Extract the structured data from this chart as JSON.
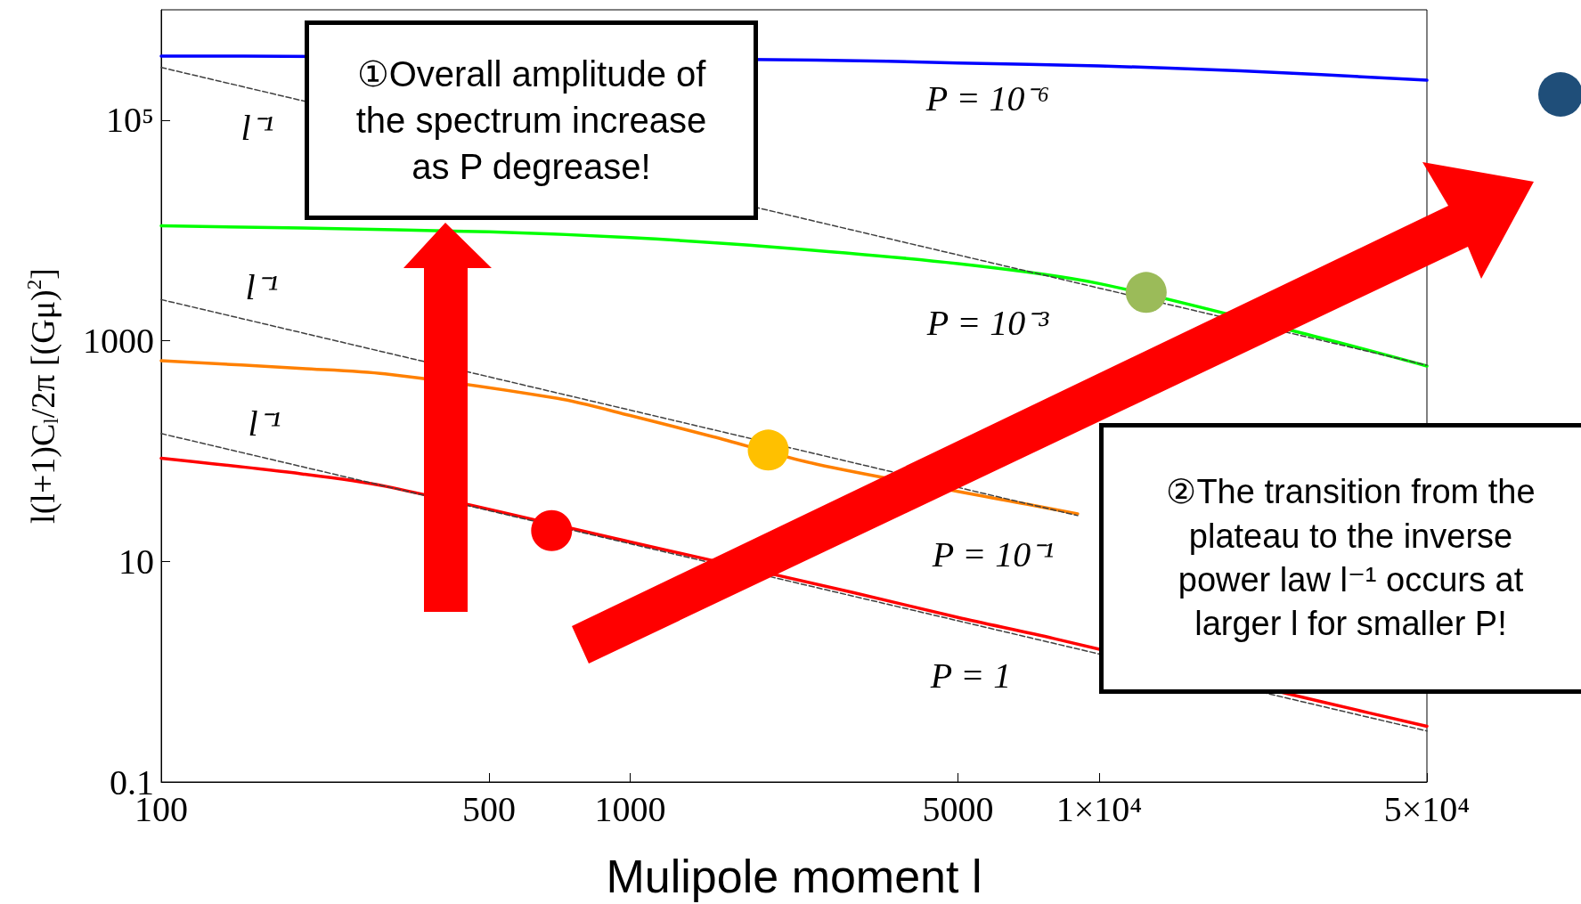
{
  "chart_data": {
    "type": "line",
    "xlabel": "Mulipole moment l",
    "ylabel": "l(l+1)C$_{l}$/2π [(Gμ)$^{2}$]",
    "log": "xy",
    "grid": false,
    "xlim": [
      100,
      50000
    ],
    "ylim": [
      0.1,
      1000000
    ],
    "xticks": [
      100,
      500,
      1000,
      5000,
      {
        "value": 10000,
        "label": "1×10⁴"
      },
      {
        "value": 50000,
        "label": "5×10⁴"
      }
    ],
    "yticks": [
      0.1,
      10,
      1000,
      {
        "value": 100000,
        "label": "10⁵"
      }
    ],
    "series": [
      {
        "color": "#0000ff",
        "x": [
          100,
          150,
          2500,
          5000,
          10000,
          20000,
          50000
        ],
        "values": [
          380000,
          380000,
          350000,
          330000,
          310000,
          280000,
          230000
        ]
      },
      {
        "color": "#00ff00",
        "x": [
          100,
          200,
          500,
          1000,
          2000,
          5000,
          10000,
          30000,
          50000
        ],
        "values": [
          11000,
          10500,
          9700,
          8600,
          7100,
          5000,
          3300,
          1050,
          590
        ]
      },
      {
        "color": "#ff8000",
        "x": [
          100,
          200,
          300,
          700,
          1000,
          1500,
          2500,
          7000,
          9000
        ],
        "values": [
          660,
          560,
          500,
          300,
          210,
          135,
          76,
          33,
          27
        ]
      },
      {
        "color": "#ff0000",
        "x": [
          100,
          200,
          300,
          1000,
          3000,
          5000,
          8000,
          30000,
          50000
        ],
        "values": [
          86,
          62,
          48,
          15,
          5.2,
          3.1,
          2.0,
          0.53,
          0.32
        ]
      },
      {
        "color": "#404040",
        "line_style": "dashed",
        "x": [
          100,
          50000
        ],
        "values": [
          300000,
          600
        ]
      },
      {
        "color": "#404040",
        "line_style": "dashed",
        "x": [
          100,
          9000
        ],
        "values": [
          2360,
          26
        ]
      },
      {
        "color": "#404040",
        "line_style": "dashed",
        "x": [
          100,
          50000
        ],
        "values": [
          144,
          0.29
        ]
      },
      {
        "type": "scatter",
        "marker": "circle",
        "color": "#ff0000",
        "x": [
          680
        ],
        "values": [
          19
        ]
      },
      {
        "type": "scatter",
        "marker": "circle",
        "color": "#ffc000",
        "x": [
          1970
        ],
        "values": [
          102
        ]
      },
      {
        "type": "scatter",
        "marker": "circle",
        "color": "#9bbb59",
        "x": [
          12600
        ],
        "values": [
          2740
        ]
      }
    ],
    "annotations": [
      "①Overall amplitude of the spectrum increase as P degrease!",
      "②The transition from the plateau to the inverse power law l⁻¹ occurs at larger l for smaller P!",
      "P = 10⁻⁶",
      "P = 10⁻³",
      "P = 10⁻¹",
      "P = 1",
      "l⁻¹",
      "l⁻¹",
      "l⁻¹"
    ]
  }
}
